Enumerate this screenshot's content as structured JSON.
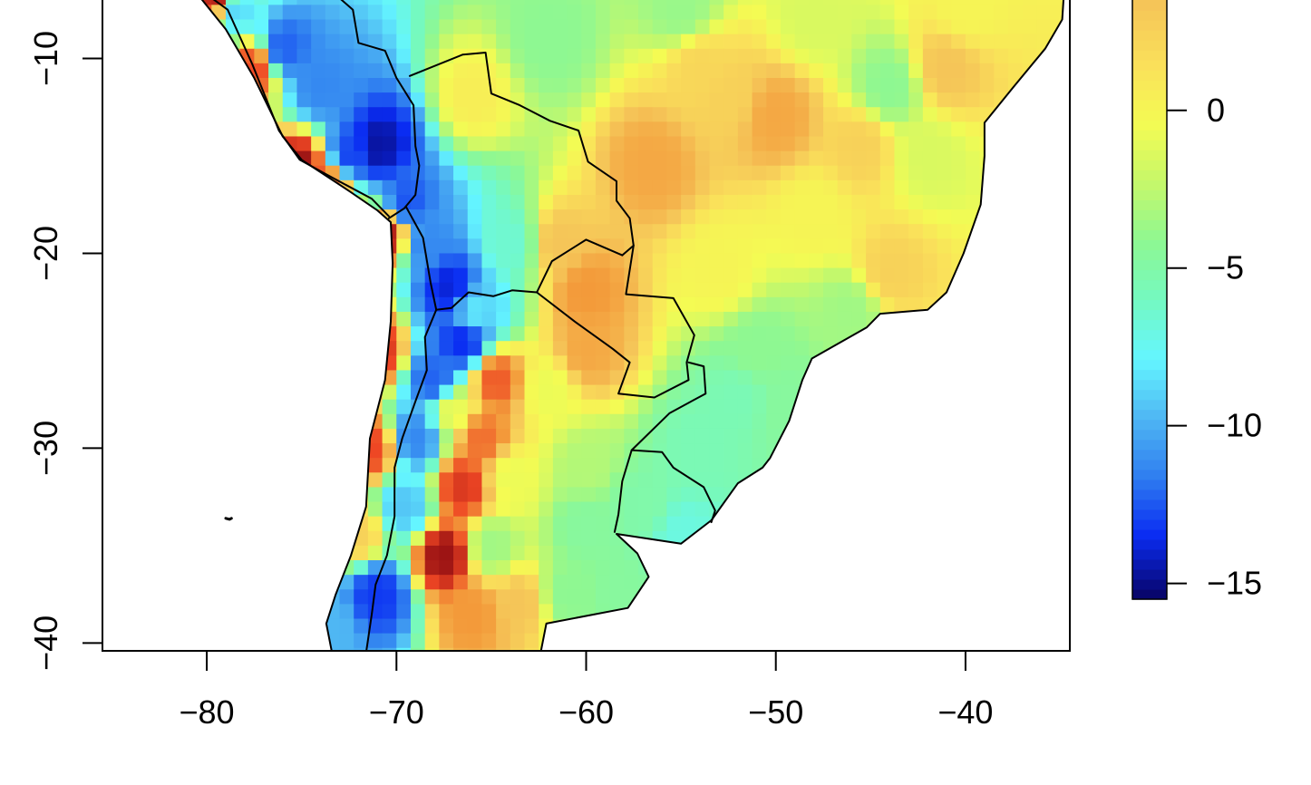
{
  "chart_data": {
    "type": "heatmap",
    "title": "",
    "xlabel": "",
    "ylabel": "",
    "xlim": [
      -85.5,
      -34.5
    ],
    "ylim": [
      -40.4,
      -7.0
    ],
    "x_ticks": [
      -80,
      -70,
      -60,
      -50,
      -40
    ],
    "y_ticks": [
      -10,
      -20,
      -30,
      -40
    ],
    "x_tick_labels": [
      "−80",
      "−70",
      "−60",
      "−50",
      "−40"
    ],
    "y_tick_labels": [
      "−10",
      "−20",
      "−30",
      "−40"
    ],
    "grid": false,
    "legend": "right",
    "cell_size_deg": [
      0.75,
      0.75
    ],
    "colorbar": {
      "min": -15.5,
      "max": 3.5,
      "ticks": [
        0,
        -5,
        -10,
        -15
      ],
      "tick_labels": [
        "0",
        "−5",
        "−10",
        "−15"
      ],
      "colors": [
        "#08066e",
        "#0a2cf2",
        "#2f7ef0",
        "#4fb7f3",
        "#64f6ff",
        "#74f9c1",
        "#8ef892",
        "#c6f86a",
        "#f4fb53",
        "#fae05a",
        "#f5c558"
      ]
    },
    "value_colors": [
      {
        "value": -15.5,
        "color": "#08066e"
      },
      {
        "value": -13.0,
        "color": "#0a2cf2"
      },
      {
        "value": -10.0,
        "color": "#2f7ef0"
      },
      {
        "value": -7.5,
        "color": "#4fb7f3"
      },
      {
        "value": -5.5,
        "color": "#64f6ff"
      },
      {
        "value": -3.5,
        "color": "#74f9c1"
      },
      {
        "value": -1.5,
        "color": "#8ef892"
      },
      {
        "value": 0.0,
        "color": "#c6f86a"
      },
      {
        "value": 1.2,
        "color": "#f4fb53"
      },
      {
        "value": 2.4,
        "color": "#fae05a"
      },
      {
        "value": 3.5,
        "color": "#f5c558"
      },
      {
        "value": 5.0,
        "color": "#f39a3a"
      },
      {
        "value": 7.0,
        "color": "#ee4624"
      },
      {
        "value": 9.0,
        "color": "#9c1414"
      }
    ],
    "land_outline": [
      [
        -80.3,
        -6.5
      ],
      [
        -81.2,
        -5.0
      ],
      [
        -80.9,
        -6.2
      ],
      [
        -79.0,
        -8.5
      ],
      [
        -77.5,
        -11.0
      ],
      [
        -76.0,
        -14.0
      ],
      [
        -75.0,
        -15.2
      ],
      [
        -72.5,
        -16.8
      ],
      [
        -71.0,
        -17.8
      ],
      [
        -70.3,
        -18.4
      ],
      [
        -70.2,
        -20.5
      ],
      [
        -70.3,
        -23.5
      ],
      [
        -70.6,
        -26.5
      ],
      [
        -71.4,
        -29.5
      ],
      [
        -71.6,
        -33.0
      ],
      [
        -72.4,
        -35.5
      ],
      [
        -73.2,
        -37.5
      ],
      [
        -73.7,
        -39.0
      ],
      [
        -73.4,
        -40.5
      ],
      [
        -62.4,
        -40.5
      ],
      [
        -62.1,
        -39.0
      ],
      [
        -57.8,
        -38.2
      ],
      [
        -56.7,
        -36.6
      ],
      [
        -57.3,
        -35.4
      ],
      [
        -58.4,
        -34.4
      ],
      [
        -55.0,
        -34.9
      ],
      [
        -53.4,
        -33.7
      ],
      [
        -52.0,
        -31.8
      ],
      [
        -50.7,
        -31.0
      ],
      [
        -50.3,
        -30.5
      ],
      [
        -49.3,
        -28.6
      ],
      [
        -48.6,
        -26.5
      ],
      [
        -48.1,
        -25.4
      ],
      [
        -45.2,
        -23.8
      ],
      [
        -44.5,
        -23.1
      ],
      [
        -42.0,
        -22.9
      ],
      [
        -41.0,
        -22.0
      ],
      [
        -40.1,
        -20.0
      ],
      [
        -39.2,
        -17.5
      ],
      [
        -39.0,
        -15.0
      ],
      [
        -39.0,
        -13.3
      ],
      [
        -37.5,
        -11.5
      ],
      [
        -35.8,
        -9.5
      ],
      [
        -34.9,
        -8.0
      ],
      [
        -34.8,
        -6.5
      ]
    ],
    "borders": [
      [
        [
          -80.3,
          -6.5
        ],
        [
          -78.9,
          -7.5
        ],
        [
          -77.6,
          -10.3
        ],
        [
          -76.2,
          -13.7
        ],
        [
          -75.1,
          -15.2
        ],
        [
          -73.6,
          -16.0
        ],
        [
          -71.3,
          -17.2
        ],
        [
          -70.4,
          -18.1
        ]
      ],
      [
        [
          -70.4,
          -18.2
        ],
        [
          -69.6,
          -17.7
        ],
        [
          -69.0,
          -17.0
        ],
        [
          -68.8,
          -15.5
        ],
        [
          -69.0,
          -14.5
        ],
        [
          -69.1,
          -12.4
        ],
        [
          -70.0,
          -11.0
        ],
        [
          -70.6,
          -9.6
        ],
        [
          -72.0,
          -9.2
        ],
        [
          -72.3,
          -7.5
        ],
        [
          -73.0,
          -6.9
        ]
      ],
      [
        [
          -69.3,
          -10.9
        ],
        [
          -66.5,
          -9.8
        ],
        [
          -65.3,
          -9.7
        ],
        [
          -65.0,
          -11.8
        ],
        [
          -63.5,
          -12.4
        ],
        [
          -61.9,
          -13.2
        ],
        [
          -60.4,
          -13.7
        ],
        [
          -59.9,
          -15.3
        ],
        [
          -58.4,
          -16.3
        ],
        [
          -58.4,
          -17.3
        ],
        [
          -57.7,
          -18.2
        ],
        [
          -57.5,
          -19.6
        ],
        [
          -58.1,
          -20.1
        ]
      ],
      [
        [
          -69.5,
          -17.6
        ],
        [
          -68.6,
          -19.2
        ],
        [
          -68.2,
          -21.5
        ],
        [
          -67.9,
          -22.9
        ],
        [
          -67.1,
          -22.8
        ],
        [
          -66.2,
          -22.0
        ],
        [
          -64.9,
          -22.2
        ],
        [
          -63.9,
          -21.9
        ],
        [
          -62.6,
          -22.0
        ],
        [
          -61.8,
          -20.4
        ],
        [
          -60.0,
          -19.3
        ],
        [
          -58.1,
          -20.1
        ]
      ],
      [
        [
          -62.6,
          -22.0
        ],
        [
          -60.6,
          -23.5
        ],
        [
          -58.6,
          -24.9
        ],
        [
          -57.7,
          -25.6
        ],
        [
          -58.3,
          -27.2
        ],
        [
          -56.4,
          -27.4
        ],
        [
          -54.6,
          -26.5
        ],
        [
          -54.7,
          -25.6
        ],
        [
          -54.3,
          -24.2
        ],
        [
          -55.4,
          -22.3
        ],
        [
          -57.9,
          -22.1
        ],
        [
          -57.5,
          -19.6
        ]
      ],
      [
        [
          -54.6,
          -25.6
        ],
        [
          -53.8,
          -25.8
        ],
        [
          -53.7,
          -27.2
        ],
        [
          -55.6,
          -28.2
        ],
        [
          -57.6,
          -30.1
        ],
        [
          -58.1,
          -31.7
        ],
        [
          -58.3,
          -33.4
        ],
        [
          -58.5,
          -34.3
        ]
      ],
      [
        [
          -57.6,
          -30.1
        ],
        [
          -56.0,
          -30.2
        ],
        [
          -55.4,
          -31.0
        ],
        [
          -53.8,
          -32.0
        ],
        [
          -53.2,
          -33.2
        ],
        [
          -53.4,
          -33.8
        ]
      ],
      [
        [
          -67.9,
          -22.9
        ],
        [
          -68.5,
          -24.3
        ],
        [
          -68.4,
          -26.0
        ],
        [
          -69.0,
          -27.6
        ],
        [
          -69.7,
          -29.5
        ],
        [
          -70.1,
          -31.0
        ],
        [
          -70.1,
          -33.5
        ],
        [
          -70.5,
          -35.5
        ],
        [
          -71.1,
          -37.0
        ],
        [
          -71.3,
          -38.5
        ],
        [
          -71.6,
          -40.5
        ]
      ]
    ],
    "islands": [
      [
        [
          -79.0,
          -33.6
        ],
        [
          -78.8,
          -33.65
        ],
        [
          -78.7,
          -33.6
        ]
      ]
    ],
    "anchors": [
      {
        "lon": -75.0,
        "lat": -15.6,
        "value": 9.0
      },
      {
        "lon": -79.5,
        "lat": -6.8,
        "value": 8.5
      },
      {
        "lon": -70.4,
        "lat": -19.0,
        "value": 8.5
      },
      {
        "lon": -71.0,
        "lat": -25.0,
        "value": 7.5
      },
      {
        "lon": -71.3,
        "lat": -30.0,
        "value": 7.0
      },
      {
        "lon": -72.0,
        "lat": -34.5,
        "value": 3.0
      },
      {
        "lon": -77.5,
        "lat": -10.5,
        "value": 7.0
      },
      {
        "lon": -73.5,
        "lat": -16.5,
        "value": 6.0
      },
      {
        "lon": -78.5,
        "lat": -7.5,
        "value": -6.5
      },
      {
        "lon": -76.0,
        "lat": -9.5,
        "value": -11.0
      },
      {
        "lon": -74.0,
        "lat": -11.5,
        "value": -9.5
      },
      {
        "lon": -71.0,
        "lat": -14.5,
        "value": -14.5
      },
      {
        "lon": -72.5,
        "lat": -15.0,
        "value": -12.0
      },
      {
        "lon": -69.5,
        "lat": -17.5,
        "value": -11.5
      },
      {
        "lon": -68.5,
        "lat": -19.5,
        "value": -9.5
      },
      {
        "lon": -67.2,
        "lat": -21.8,
        "value": -13.5
      },
      {
        "lon": -66.5,
        "lat": -24.5,
        "value": -13.0
      },
      {
        "lon": -68.0,
        "lat": -26.5,
        "value": -11.0
      },
      {
        "lon": -69.0,
        "lat": -29.5,
        "value": -9.5
      },
      {
        "lon": -69.5,
        "lat": -33.0,
        "value": -7.0
      },
      {
        "lon": -71.0,
        "lat": -37.5,
        "value": -12.5
      },
      {
        "lon": -73.5,
        "lat": -39.2,
        "value": -7.5
      },
      {
        "lon": -64.0,
        "lat": -19.5,
        "value": -4.0
      },
      {
        "lon": -66.0,
        "lat": -23.0,
        "value": -6.0
      },
      {
        "lon": -67.5,
        "lat": -35.5,
        "value": 9.0
      },
      {
        "lon": -66.5,
        "lat": -32.0,
        "value": 7.5
      },
      {
        "lon": -64.8,
        "lat": -26.5,
        "value": 6.5
      },
      {
        "lon": -65.5,
        "lat": -29.5,
        "value": 6.0
      },
      {
        "lon": -66.0,
        "lat": -38.5,
        "value": 5.0
      },
      {
        "lon": -63.5,
        "lat": -38.0,
        "value": 3.5
      },
      {
        "lon": -67.0,
        "lat": -28.0,
        "value": 1.0
      },
      {
        "lon": -60.0,
        "lat": -22.0,
        "value": 5.0
      },
      {
        "lon": -60.0,
        "lat": -25.0,
        "value": 4.5
      },
      {
        "lon": -56.5,
        "lat": -15.5,
        "value": 4.5
      },
      {
        "lon": -50.0,
        "lat": -13.0,
        "value": 4.5
      },
      {
        "lon": -52.5,
        "lat": -12.0,
        "value": 3.0
      },
      {
        "lon": -54.0,
        "lat": -10.5,
        "value": 2.8
      },
      {
        "lon": -61.5,
        "lat": -19.5,
        "value": 3.5
      },
      {
        "lon": -41.0,
        "lat": -10.5,
        "value": 3.5
      },
      {
        "lon": -45.5,
        "lat": -14.5,
        "value": 3.0
      },
      {
        "lon": -44.0,
        "lat": -21.0,
        "value": 3.0
      },
      {
        "lon": -62.0,
        "lat": -27.0,
        "value": 1.0
      },
      {
        "lon": -62.0,
        "lat": -9.0,
        "value": -1.5
      },
      {
        "lon": -55.0,
        "lat": -7.5,
        "value": -1.2
      },
      {
        "lon": -48.0,
        "lat": -8.0,
        "value": 0.5
      },
      {
        "lon": -40.0,
        "lat": -7.5,
        "value": 1.5
      },
      {
        "lon": -66.0,
        "lat": -12.0,
        "value": 1.8
      },
      {
        "lon": -44.0,
        "lat": -11.5,
        "value": -1.5
      },
      {
        "lon": -42.0,
        "lat": -15.0,
        "value": 0.5
      },
      {
        "lon": -48.0,
        "lat": -18.0,
        "value": 1.5
      },
      {
        "lon": -53.0,
        "lat": -21.0,
        "value": 1.5
      },
      {
        "lon": -51.0,
        "lat": -25.0,
        "value": -1.5
      },
      {
        "lon": -52.0,
        "lat": -27.5,
        "value": -3.0
      },
      {
        "lon": -54.0,
        "lat": -30.0,
        "value": -3.0
      },
      {
        "lon": -57.0,
        "lat": -33.0,
        "value": -2.5
      },
      {
        "lon": -55.0,
        "lat": -34.5,
        "value": -4.5
      },
      {
        "lon": -60.0,
        "lat": -34.0,
        "value": -2.0
      },
      {
        "lon": -60.0,
        "lat": -31.0,
        "value": -0.5
      },
      {
        "lon": -58.0,
        "lat": -37.5,
        "value": -2.0
      },
      {
        "lon": -61.0,
        "lat": -37.5,
        "value": -1.5
      },
      {
        "lon": -65.0,
        "lat": -35.0,
        "value": -1.0
      },
      {
        "lon": -64.0,
        "lat": -31.5,
        "value": 1.0
      },
      {
        "lon": -46.0,
        "lat": -23.0,
        "value": -1.0
      },
      {
        "lon": -49.5,
        "lat": -28.0,
        "value": -2.0
      }
    ]
  }
}
